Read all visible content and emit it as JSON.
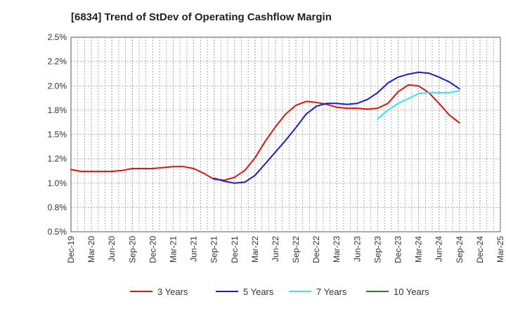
{
  "chart_data": {
    "type": "line",
    "title": "[6834]  Trend of StDev of Operating Cashflow Margin",
    "xlabel": "",
    "ylabel": "",
    "x": [
      "Dec-19",
      "Mar-20",
      "Jun-20",
      "Sep-20",
      "Dec-20",
      "Mar-21",
      "Jun-21",
      "Sep-21",
      "Dec-21",
      "Mar-22",
      "Jun-22",
      "Sep-22",
      "Dec-22",
      "Mar-23",
      "Jun-23",
      "Sep-23",
      "Dec-23",
      "Mar-24",
      "Jun-24",
      "Sep-24",
      "Dec-24",
      "Mar-25"
    ],
    "ylim": [
      0.5,
      2.5
    ],
    "yticks": [
      "0.5%",
      "0.8%",
      "1.0%",
      "1.2%",
      "1.5%",
      "1.8%",
      "2.0%",
      "2.2%",
      "2.5%"
    ],
    "grid": true,
    "legend_position": "bottom",
    "series": [
      {
        "name": "3 Years",
        "color": "#e3120b",
        "x": [
          0,
          0.5,
          1,
          1.5,
          2,
          2.5,
          3,
          3.5,
          4,
          4.5,
          5,
          5.5,
          6,
          6.5,
          7,
          7.5,
          8,
          8.5,
          9,
          9.5,
          10,
          10.5,
          11,
          11.5,
          12,
          12.5,
          13,
          13.5,
          14,
          14.5,
          15,
          15.5,
          16,
          16.5,
          17,
          17.5,
          18,
          18.5,
          19
        ],
        "values": [
          1.14,
          1.12,
          1.12,
          1.12,
          1.12,
          1.13,
          1.15,
          1.15,
          1.15,
          1.16,
          1.17,
          1.17,
          1.15,
          1.1,
          1.04,
          1.03,
          1.06,
          1.13,
          1.26,
          1.43,
          1.58,
          1.71,
          1.8,
          1.84,
          1.83,
          1.81,
          1.78,
          1.77,
          1.77,
          1.76,
          1.77,
          1.82,
          1.94,
          2.01,
          2.0,
          1.93,
          1.82,
          1.7,
          1.62
        ]
      },
      {
        "name": "5 Years",
        "color": "#1a1adb",
        "x": [
          7,
          7.5,
          8,
          8.5,
          9,
          9.5,
          10,
          10.5,
          11,
          11.5,
          12,
          12.5,
          13,
          13.5,
          14,
          14.5,
          15,
          15.5,
          16,
          16.5,
          17,
          17.5,
          18,
          18.5,
          19
        ],
        "values": [
          1.05,
          1.02,
          1.0,
          1.01,
          1.08,
          1.2,
          1.32,
          1.44,
          1.57,
          1.71,
          1.79,
          1.82,
          1.82,
          1.81,
          1.82,
          1.86,
          1.93,
          2.03,
          2.09,
          2.12,
          2.14,
          2.13,
          2.09,
          2.04,
          1.97
        ]
      },
      {
        "name": "7 Years",
        "color": "#33e6ef",
        "x": [
          15,
          15.5,
          16,
          16.5,
          17,
          17.5,
          18,
          18.5,
          19
        ],
        "values": [
          1.66,
          1.75,
          1.82,
          1.87,
          1.92,
          1.93,
          1.93,
          1.93,
          1.95
        ]
      },
      {
        "name": "10 Years",
        "color": "#1f8a1f",
        "x": [],
        "values": []
      }
    ]
  }
}
